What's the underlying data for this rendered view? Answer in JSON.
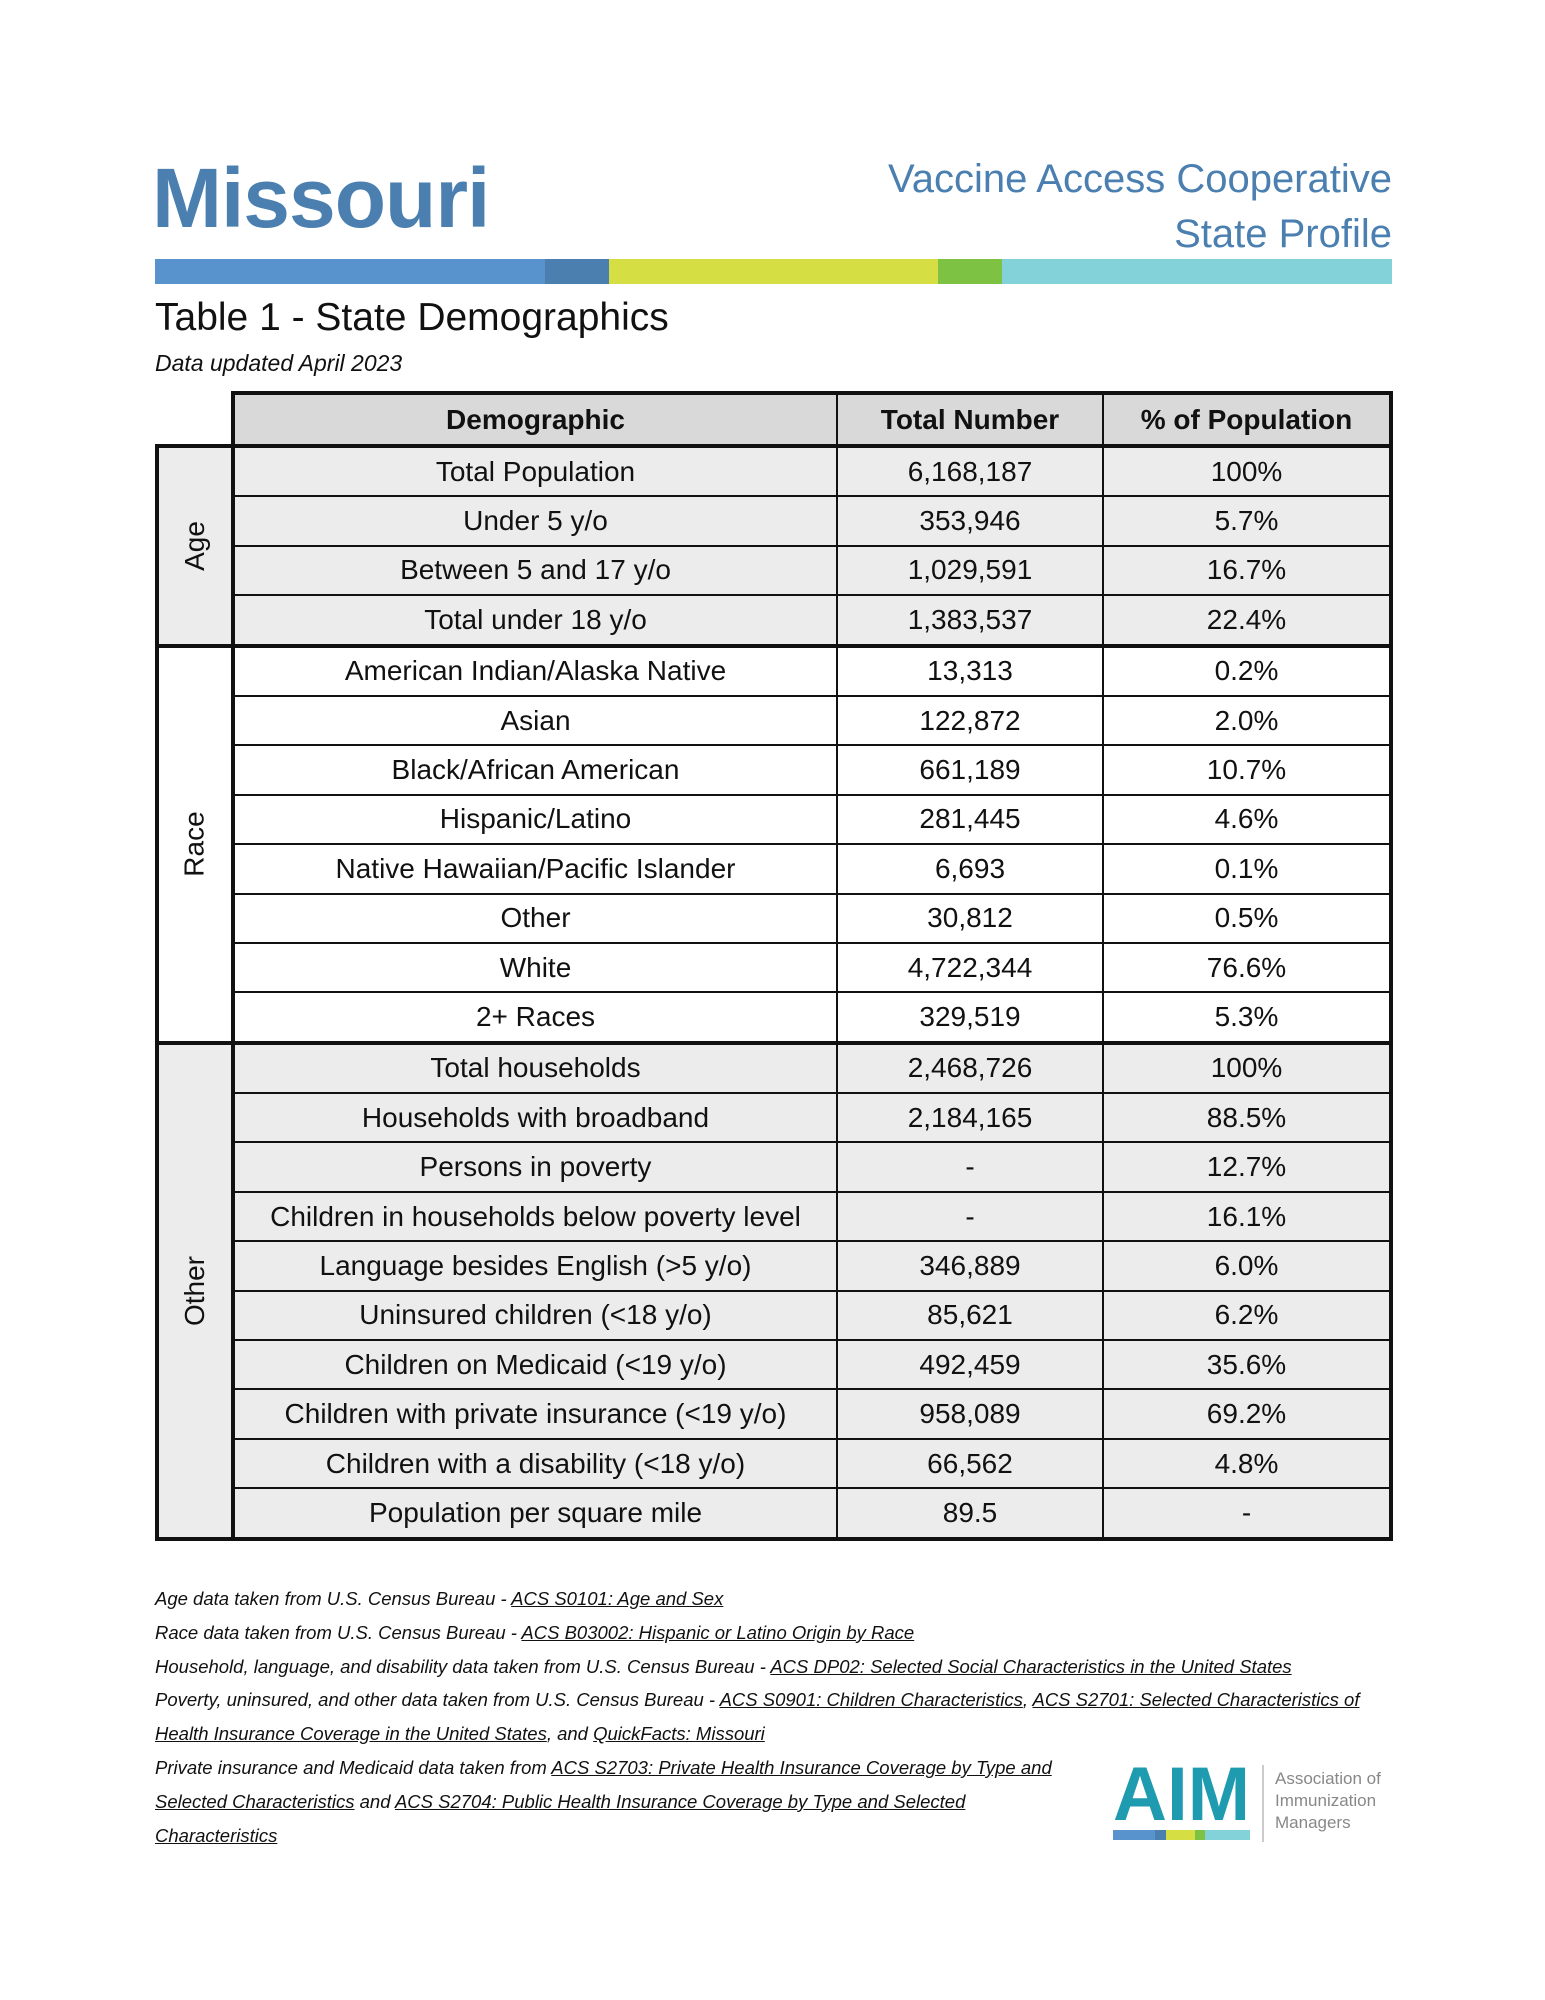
{
  "header": {
    "state": "Missouri",
    "org_line1": "Vaccine Access Cooperative",
    "org_line2": "State Profile",
    "bar_colors": [
      "#5893cd",
      "#4a7fb0",
      "#d5df44",
      "#7dc242",
      "#84d2d9"
    ]
  },
  "table_title": "Table 1 - State Demographics",
  "updated": "Data updated April 2023",
  "columns": [
    "Demographic",
    "Total Number",
    "% of Population"
  ],
  "groups": [
    {
      "label": "Age",
      "rows": [
        [
          "Total Population",
          "6,168,187",
          "100%"
        ],
        [
          "Under 5 y/o",
          "353,946",
          "5.7%"
        ],
        [
          "Between 5 and 17 y/o",
          "1,029,591",
          "16.7%"
        ],
        [
          "Total under 18 y/o",
          "1,383,537",
          "22.4%"
        ]
      ]
    },
    {
      "label": "Race",
      "rows": [
        [
          "American Indian/Alaska Native",
          "13,313",
          "0.2%"
        ],
        [
          "Asian",
          "122,872",
          "2.0%"
        ],
        [
          "Black/African American",
          "661,189",
          "10.7%"
        ],
        [
          "Hispanic/Latino",
          "281,445",
          "4.6%"
        ],
        [
          "Native Hawaiian/Pacific Islander",
          "6,693",
          "0.1%"
        ],
        [
          "Other",
          "30,812",
          "0.5%"
        ],
        [
          "White",
          "4,722,344",
          "76.6%"
        ],
        [
          "2+ Races",
          "329,519",
          "5.3%"
        ]
      ]
    },
    {
      "label": "Other",
      "rows": [
        [
          "Total households",
          "2,468,726",
          "100%"
        ],
        [
          "Households with broadband",
          "2,184,165",
          "88.5%"
        ],
        [
          "Persons in poverty",
          "-",
          "12.7%"
        ],
        [
          "Children in households below poverty level",
          "-",
          "16.1%"
        ],
        [
          "Language besides English (>5 y/o)",
          "346,889",
          "6.0%"
        ],
        [
          "Uninsured children (<18 y/o)",
          "85,621",
          "6.2%"
        ],
        [
          "Children on Medicaid (<19 y/o)",
          "492,459",
          "35.6%"
        ],
        [
          "Children with private insurance (<19 y/o)",
          "958,089",
          "69.2%"
        ],
        [
          "Children with a disability (<18 y/o)",
          "66,562",
          "4.8%"
        ],
        [
          "Population per square mile",
          "89.5",
          "-"
        ]
      ]
    }
  ],
  "notes": [
    [
      {
        "t": "Age data taken from U.S. Census Bureau - "
      },
      {
        "t": "ACS S0101: Age and Sex",
        "link": true
      }
    ],
    [
      {
        "t": "Race data taken from U.S. Census Bureau - "
      },
      {
        "t": "ACS B03002: Hispanic or Latino Origin by Race",
        "link": true
      }
    ],
    [
      {
        "t": "Household, language, and disability data taken from U.S. Census Bureau - "
      },
      {
        "t": "ACS DP02: Selected Social Characteristics in the United States",
        "link": true
      }
    ],
    [
      {
        "t": "Poverty, uninsured, and other data taken from U.S. Census Bureau - "
      },
      {
        "t": "ACS S0901: Children Characteristics",
        "link": true
      },
      {
        "t": ", "
      },
      {
        "t": "ACS S2701: Selected Characteristics of Health Insurance Coverage in the United States",
        "link": true
      },
      {
        "t": ", and "
      },
      {
        "t": "QuickFacts: Missouri",
        "link": true
      }
    ],
    [
      {
        "t": "Private insurance and Medicaid data taken from "
      },
      {
        "t": "ACS S2703: Private Health Insurance Coverage by Type and Selected Characteristics",
        "link": true
      },
      {
        "t": " and "
      },
      {
        "t": "ACS S2704: Public Health Insurance Coverage by Type and Selected Characteristics",
        "link": true
      }
    ]
  ],
  "logo": {
    "mark": "AIM",
    "line1": "Association of",
    "line2": "Immunization",
    "line3": "Managers",
    "color": "#1f9bb0"
  }
}
